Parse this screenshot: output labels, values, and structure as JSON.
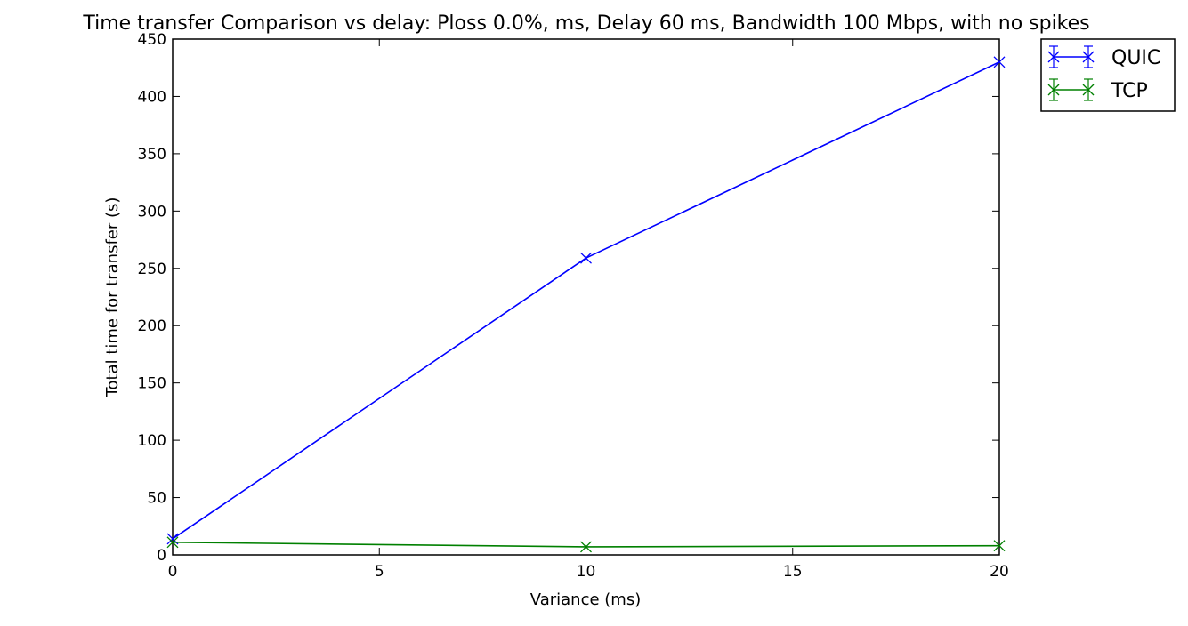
{
  "chart_data": {
    "type": "line",
    "title": "Time transfer Comparison vs delay: Ploss 0.0%, ms, Delay 60 ms, Bandwidth 100 Mbps, with no spikes",
    "xlabel": "Variance (ms)",
    "ylabel": "Total time for transfer (s)",
    "xlim": [
      0,
      20
    ],
    "ylim": [
      0,
      450
    ],
    "xticks": [
      0,
      5,
      10,
      15,
      20
    ],
    "yticks": [
      0,
      50,
      100,
      150,
      200,
      250,
      300,
      350,
      400,
      450
    ],
    "x": [
      0,
      10,
      20
    ],
    "grid": false,
    "legend_position": "outside top-right",
    "series": [
      {
        "name": "QUIC",
        "color": "#0000ff",
        "marker": "x",
        "values": [
          14,
          259,
          430
        ]
      },
      {
        "name": "TCP",
        "color": "#008000",
        "marker": "x",
        "values": [
          11,
          7,
          8
        ]
      }
    ]
  }
}
